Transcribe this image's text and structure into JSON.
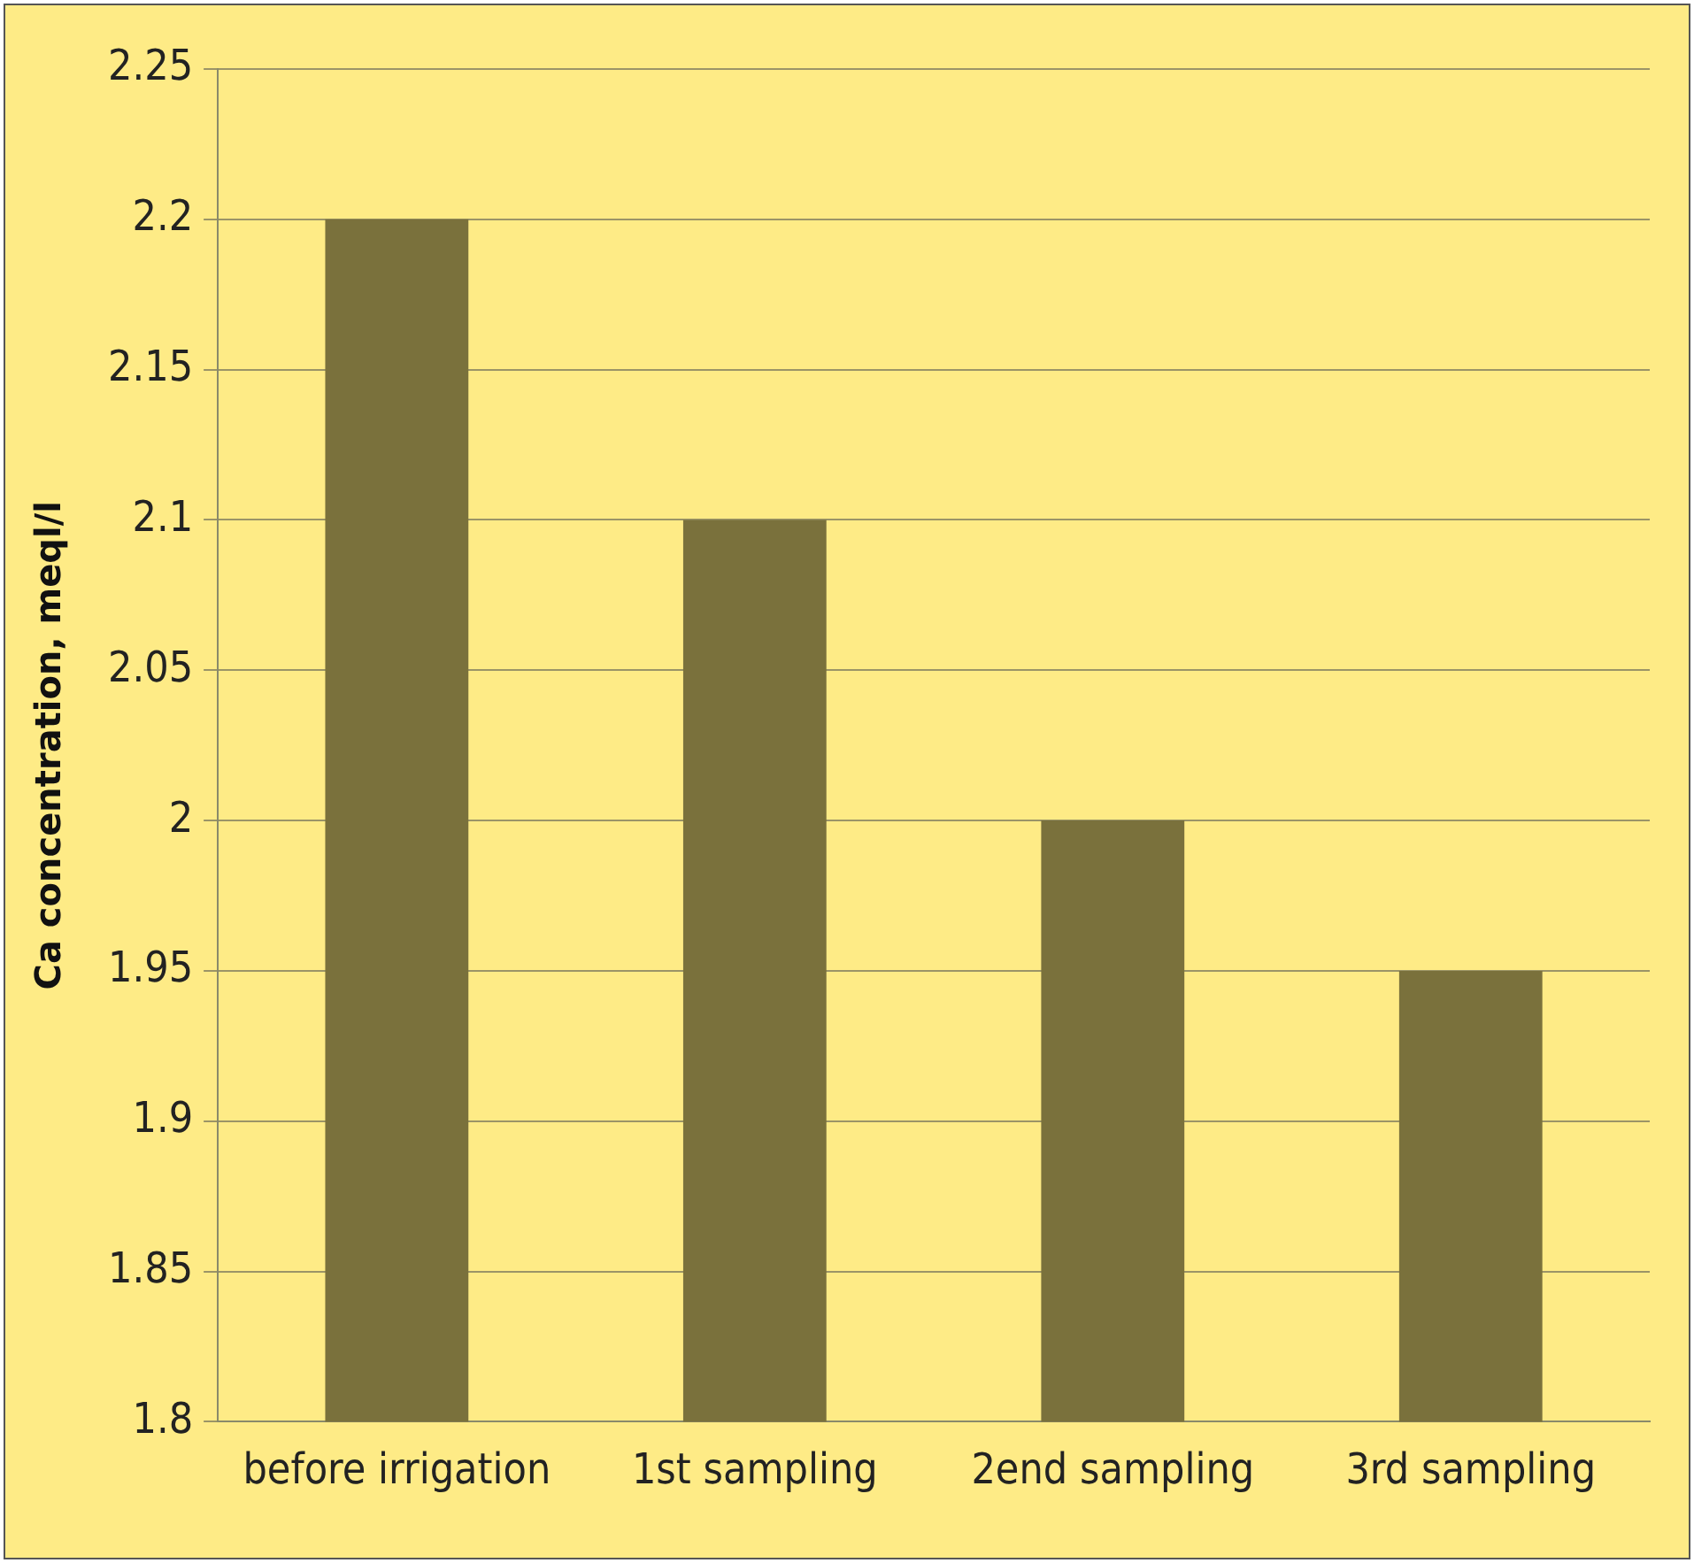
{
  "chart_data": {
    "type": "bar",
    "ylabel": "Ca concentration, meql/l",
    "categories": [
      "before irrigation",
      "1st sampling",
      "2end sampling",
      "3rd sampling"
    ],
    "values": [
      2.2,
      2.1,
      2.0,
      1.95
    ],
    "color": "#7a713c",
    "ylim": [
      1.8,
      2.25
    ],
    "yticks": [
      1.8,
      1.85,
      1.9,
      1.95,
      2,
      2.05,
      2.1,
      2.15,
      2.2,
      2.25
    ],
    "grid": "y",
    "legend": false
  }
}
